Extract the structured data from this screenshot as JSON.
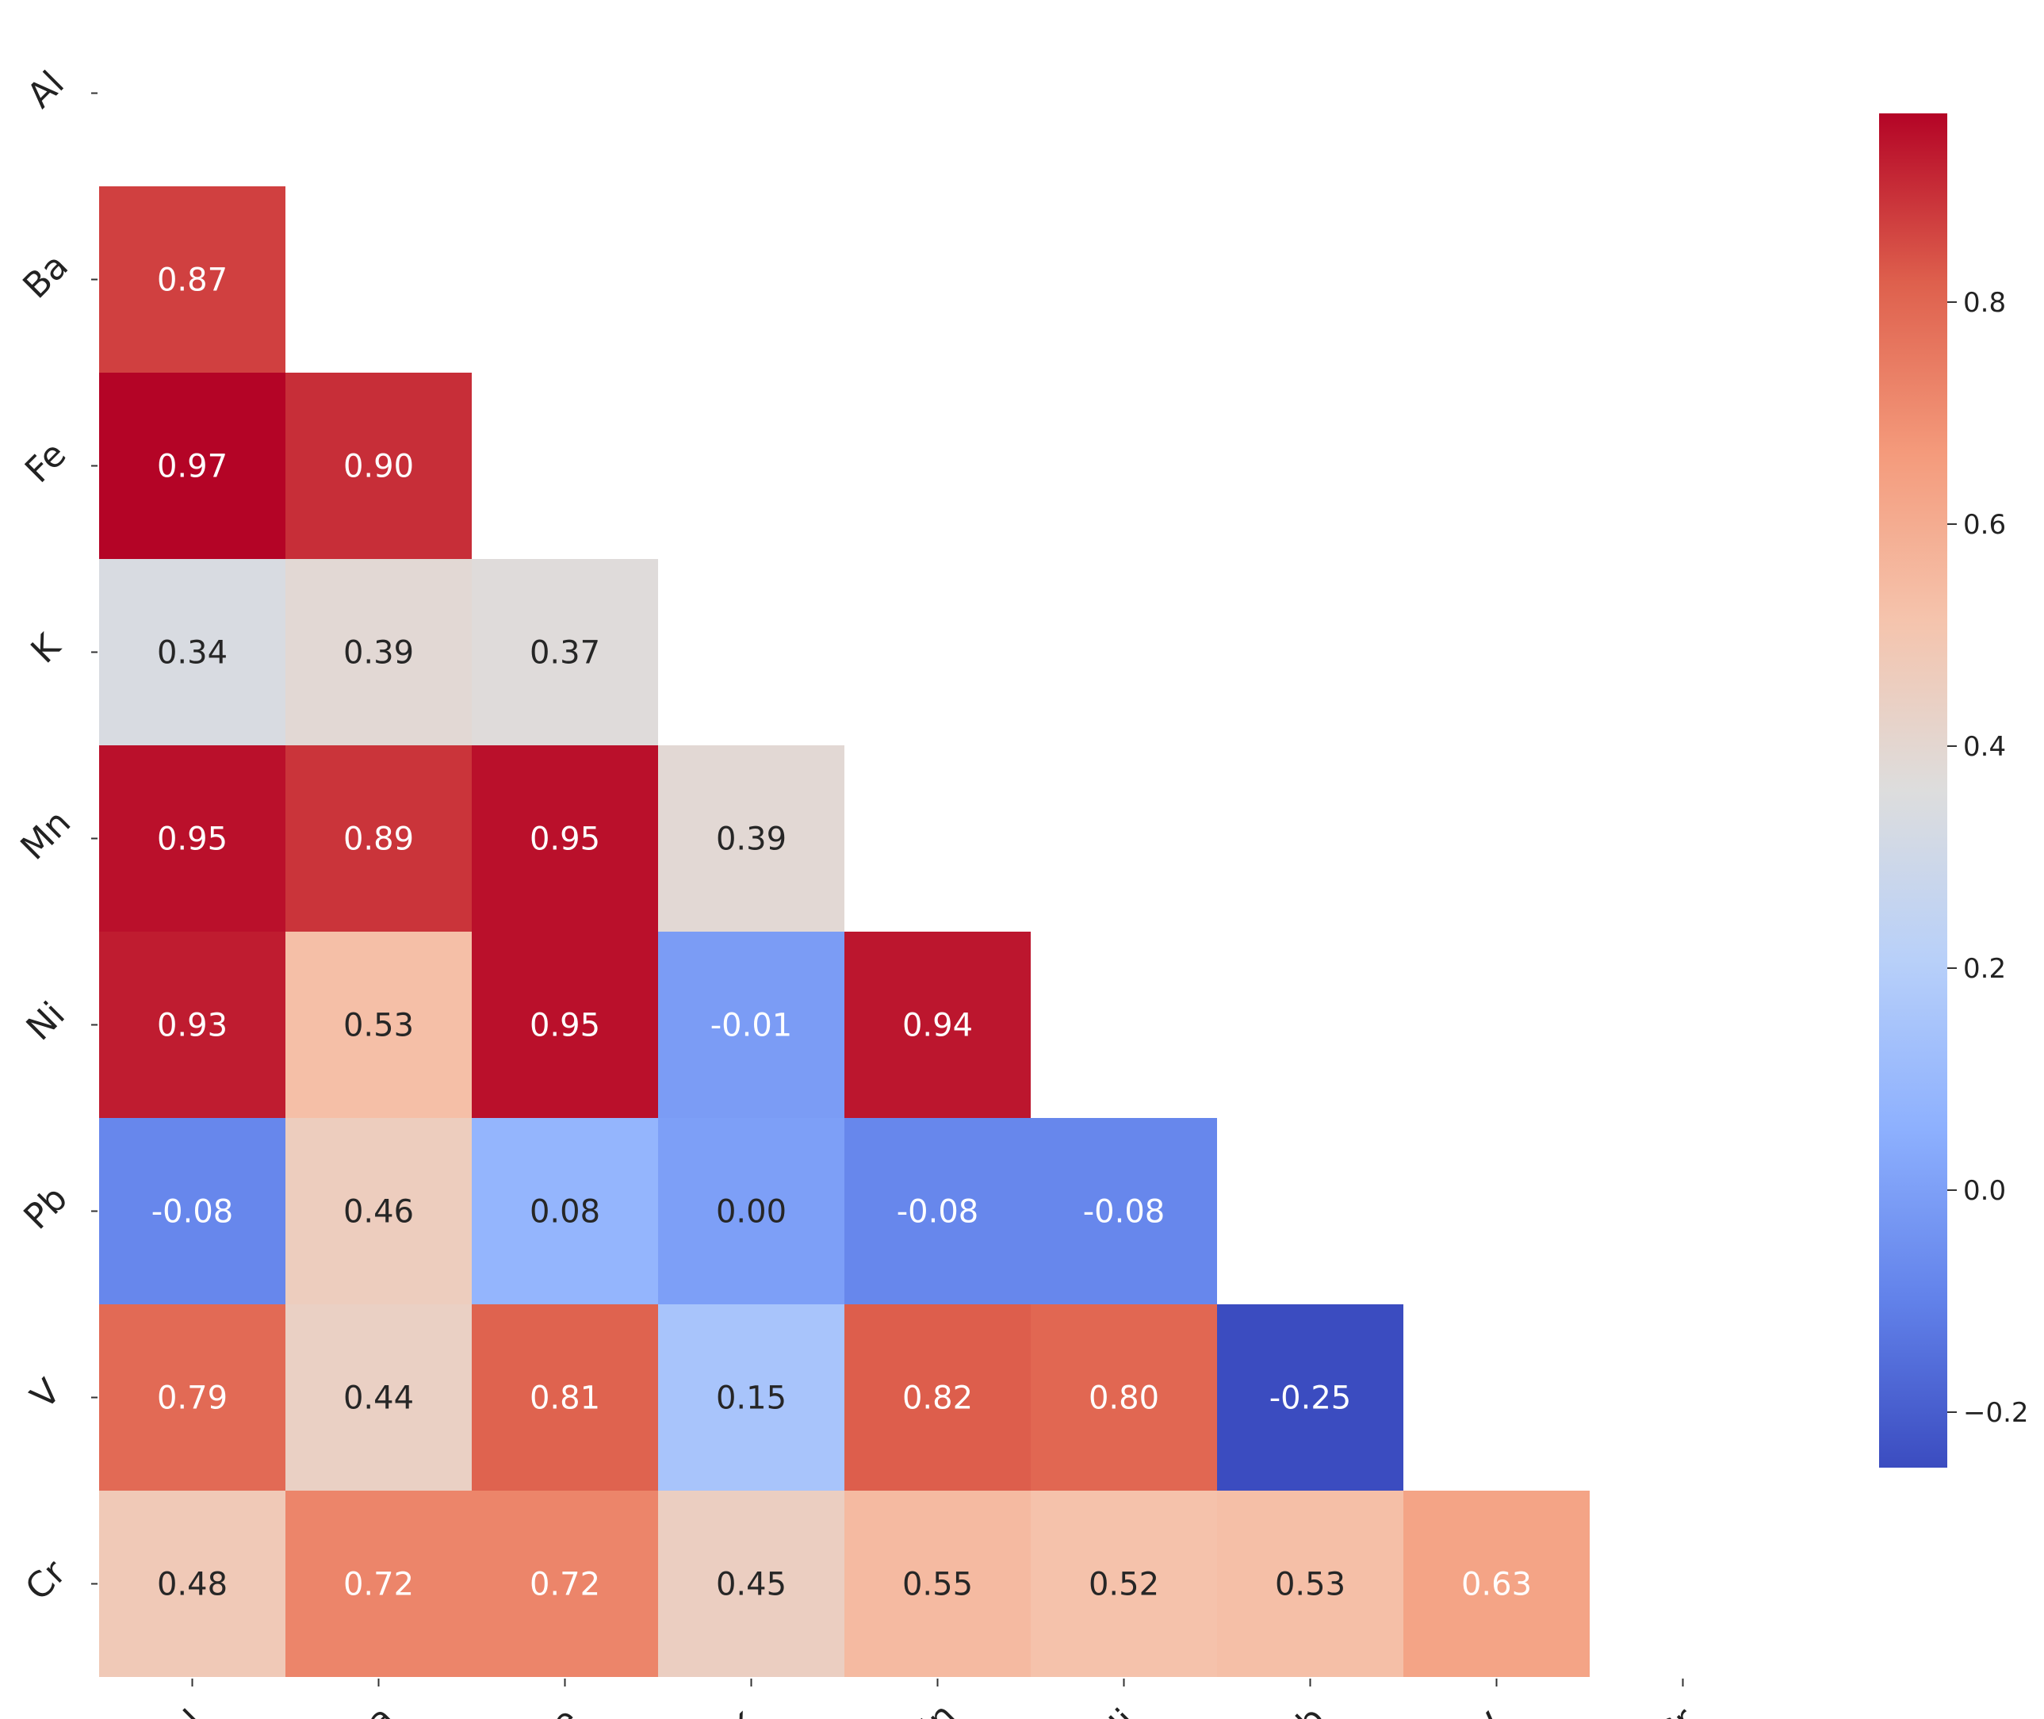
{
  "chart_data": {
    "type": "heatmap",
    "title": "",
    "xlabel": "",
    "ylabel": "",
    "mask": "upper-triangle-including-diagonal",
    "rows": [
      "Al",
      "Ba",
      "Fe",
      "K",
      "Mn",
      "Ni",
      "Pb",
      "V",
      "Cr"
    ],
    "cols": [
      "Al",
      "Ba",
      "Fe",
      "K",
      "Mn",
      "Ni",
      "Pb",
      "V",
      "Cr"
    ],
    "values": [
      [
        null,
        null,
        null,
        null,
        null,
        null,
        null,
        null,
        null
      ],
      [
        0.87,
        null,
        null,
        null,
        null,
        null,
        null,
        null,
        null
      ],
      [
        0.97,
        0.9,
        null,
        null,
        null,
        null,
        null,
        null,
        null
      ],
      [
        0.34,
        0.39,
        0.37,
        null,
        null,
        null,
        null,
        null,
        null
      ],
      [
        0.95,
        0.89,
        0.95,
        0.39,
        null,
        null,
        null,
        null,
        null
      ],
      [
        0.93,
        0.53,
        0.95,
        -0.01,
        0.94,
        null,
        null,
        null,
        null
      ],
      [
        -0.08,
        0.46,
        0.08,
        0.0,
        -0.08,
        -0.08,
        null,
        null,
        null
      ],
      [
        0.79,
        0.44,
        0.81,
        0.15,
        0.82,
        0.8,
        -0.25,
        null,
        null
      ],
      [
        0.48,
        0.72,
        0.72,
        0.45,
        0.55,
        0.52,
        0.53,
        0.63,
        null
      ]
    ],
    "value_format": "0.00",
    "colormap": "coolwarm",
    "vmin": -0.25,
    "vmax": 0.97,
    "colorbar": {
      "ticks": [
        -0.2,
        0.0,
        0.2,
        0.4,
        0.6,
        0.8
      ],
      "tick_labels": [
        "−0.2",
        "0.0",
        "0.2",
        "0.4",
        "0.6",
        "0.8"
      ]
    },
    "text_colors": {
      "dark": "#262626",
      "light": "#ffffff"
    }
  }
}
